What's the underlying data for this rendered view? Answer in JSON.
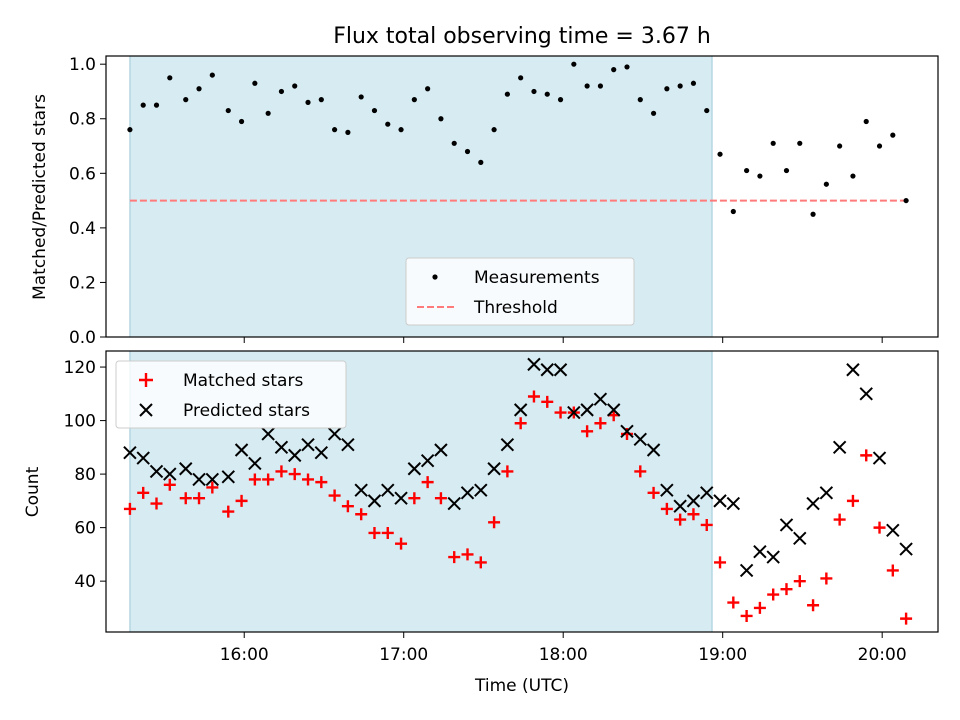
{
  "chart_data": [
    {
      "type": "scatter",
      "title": "Flux total observing time = 3.67 h",
      "xlabel": "",
      "ylabel": "Matched/Predicted stars",
      "xlim": [
        "15:08",
        "20:21"
      ],
      "ylim": [
        0,
        1.03
      ],
      "yticks": [
        "0.0",
        "0.2",
        "0.4",
        "0.6",
        "0.8",
        "1.0"
      ],
      "shaded_region": [
        "15:17",
        "18:56"
      ],
      "legend_position": "bottom-center",
      "series": [
        {
          "name": "Measurements",
          "marker": "dot",
          "x": [
            "15:17",
            "15:22",
            "15:27",
            "15:32",
            "15:38",
            "15:43",
            "15:48",
            "15:54",
            "15:59",
            "16:04",
            "16:09",
            "16:14",
            "16:19",
            "16:24",
            "16:29",
            "16:34",
            "16:39",
            "16:44",
            "16:49",
            "16:54",
            "16:59",
            "17:04",
            "17:09",
            "17:14",
            "17:19",
            "17:24",
            "17:29",
            "17:34",
            "17:39",
            "17:44",
            "17:49",
            "17:54",
            "17:59",
            "18:04",
            "18:09",
            "18:14",
            "18:19",
            "18:24",
            "18:29",
            "18:34",
            "18:39",
            "18:44",
            "18:49",
            "18:54",
            "18:59",
            "19:04",
            "19:09",
            "19:14",
            "19:19",
            "19:24",
            "19:29",
            "19:34",
            "19:39",
            "19:44",
            "19:49",
            "19:54",
            "19:59",
            "20:04",
            "20:09"
          ],
          "values": [
            0.76,
            0.85,
            0.85,
            0.95,
            0.87,
            0.91,
            0.96,
            0.83,
            0.79,
            0.93,
            0.82,
            0.9,
            0.92,
            0.86,
            0.87,
            0.76,
            0.75,
            0.88,
            0.83,
            0.78,
            0.76,
            0.87,
            0.91,
            0.8,
            0.71,
            0.68,
            0.64,
            0.76,
            0.89,
            0.95,
            0.9,
            0.89,
            0.87,
            1.0,
            0.92,
            0.92,
            0.98,
            0.99,
            0.87,
            0.82,
            0.91,
            0.92,
            0.93,
            0.83,
            0.67,
            0.46,
            0.61,
            0.59,
            0.71,
            0.61,
            0.71,
            0.45,
            0.56,
            0.7,
            0.59,
            0.79,
            0.7,
            0.74,
            0.5
          ]
        },
        {
          "name": "Threshold",
          "line": "dashed",
          "x": [
            "15:17",
            "20:09"
          ],
          "values": [
            0.5,
            0.5
          ]
        }
      ]
    },
    {
      "type": "scatter",
      "title": "",
      "xlabel": "Time (UTC)",
      "ylabel": "Count",
      "xlim": [
        "15:08",
        "20:21"
      ],
      "ylim": [
        21,
        126
      ],
      "yticks": [
        "40",
        "60",
        "80",
        "100",
        "120"
      ],
      "xticks": [
        "16:00",
        "17:00",
        "18:00",
        "19:00",
        "20:00"
      ],
      "shaded_region": [
        "15:17",
        "18:56"
      ],
      "legend_position": "top-left",
      "series": [
        {
          "name": "Matched stars",
          "marker": "plus",
          "color": "#ff0000",
          "x": [
            "15:17",
            "15:22",
            "15:27",
            "15:32",
            "15:38",
            "15:43",
            "15:48",
            "15:54",
            "15:59",
            "16:04",
            "16:09",
            "16:14",
            "16:19",
            "16:24",
            "16:29",
            "16:34",
            "16:39",
            "16:44",
            "16:49",
            "16:54",
            "16:59",
            "17:04",
            "17:09",
            "17:14",
            "17:19",
            "17:24",
            "17:29",
            "17:34",
            "17:39",
            "17:44",
            "17:49",
            "17:54",
            "17:59",
            "18:04",
            "18:09",
            "18:14",
            "18:19",
            "18:24",
            "18:29",
            "18:34",
            "18:39",
            "18:44",
            "18:49",
            "18:54",
            "18:59",
            "19:04",
            "19:09",
            "19:14",
            "19:19",
            "19:24",
            "19:29",
            "19:34",
            "19:39",
            "19:44",
            "19:49",
            "19:54",
            "19:59",
            "20:04",
            "20:09"
          ],
          "values": [
            67,
            73,
            69,
            76,
            71,
            71,
            75,
            66,
            70,
            78,
            78,
            81,
            80,
            78,
            77,
            72,
            68,
            65,
            58,
            58,
            54,
            71,
            77,
            71,
            49,
            50,
            47,
            62,
            81,
            99,
            109,
            107,
            103,
            103,
            96,
            99,
            102,
            95,
            81,
            73,
            67,
            63,
            65,
            61,
            47,
            32,
            27,
            30,
            35,
            37,
            40,
            31,
            41,
            63,
            70,
            87,
            60,
            44,
            26
          ]
        },
        {
          "name": "Predicted stars",
          "marker": "x",
          "color": "#000000",
          "x": [
            "15:17",
            "15:22",
            "15:27",
            "15:32",
            "15:38",
            "15:43",
            "15:48",
            "15:54",
            "15:59",
            "16:04",
            "16:09",
            "16:14",
            "16:19",
            "16:24",
            "16:29",
            "16:34",
            "16:39",
            "16:44",
            "16:49",
            "16:54",
            "16:59",
            "17:04",
            "17:09",
            "17:14",
            "17:19",
            "17:24",
            "17:29",
            "17:34",
            "17:39",
            "17:44",
            "17:49",
            "17:54",
            "17:59",
            "18:04",
            "18:09",
            "18:14",
            "18:19",
            "18:24",
            "18:29",
            "18:34",
            "18:39",
            "18:44",
            "18:49",
            "18:54",
            "18:59",
            "19:04",
            "19:09",
            "19:14",
            "19:19",
            "19:24",
            "19:29",
            "19:34",
            "19:39",
            "19:44",
            "19:49",
            "19:54",
            "19:59",
            "20:04",
            "20:09"
          ],
          "values": [
            88,
            86,
            81,
            80,
            82,
            78,
            78,
            79,
            89,
            84,
            95,
            90,
            87,
            91,
            88,
            95,
            91,
            74,
            70,
            74,
            71,
            82,
            85,
            89,
            69,
            73,
            74,
            82,
            91,
            104,
            121,
            119,
            119,
            103,
            104,
            108,
            104,
            96,
            93,
            89,
            74,
            68,
            70,
            73,
            70,
            69,
            44,
            51,
            49,
            61,
            56,
            69,
            73,
            90,
            119,
            110,
            86,
            59,
            52
          ]
        }
      ]
    }
  ]
}
